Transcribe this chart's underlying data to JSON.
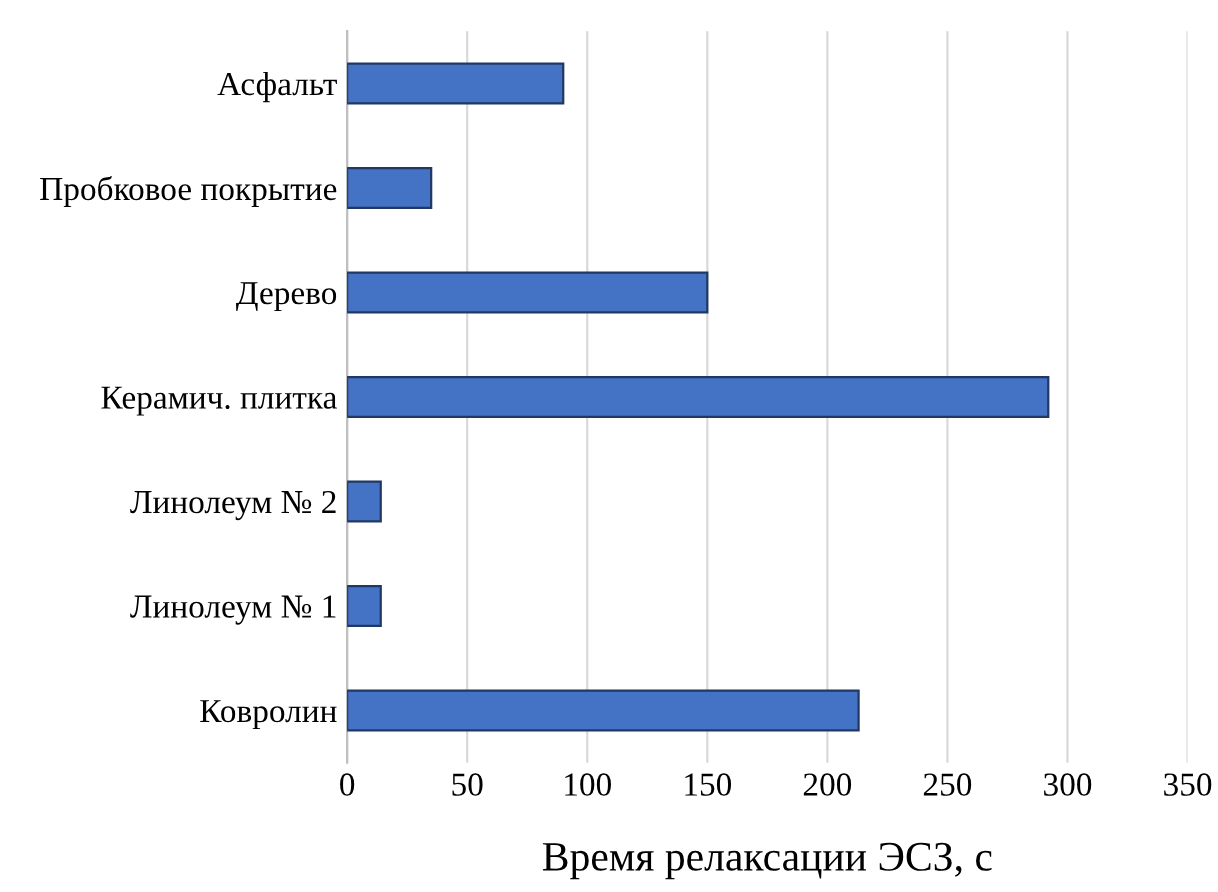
{
  "chart_data": {
    "type": "bar",
    "orientation": "horizontal",
    "xlabel": "Время релаксации ЭСЗ, с",
    "categories": [
      "Асфальт",
      "Пробковое покрытие",
      "Дерево",
      "Керамич. плитка",
      "Линолеум № 2",
      "Линолеум № 1",
      "Ковролин"
    ],
    "values": [
      90,
      35,
      150,
      292,
      14,
      14,
      213
    ],
    "color": "#4472c4",
    "xlim": [
      0,
      350
    ],
    "xticks": [
      0,
      50,
      100,
      150,
      200,
      250,
      300,
      350
    ],
    "grid": "x"
  }
}
